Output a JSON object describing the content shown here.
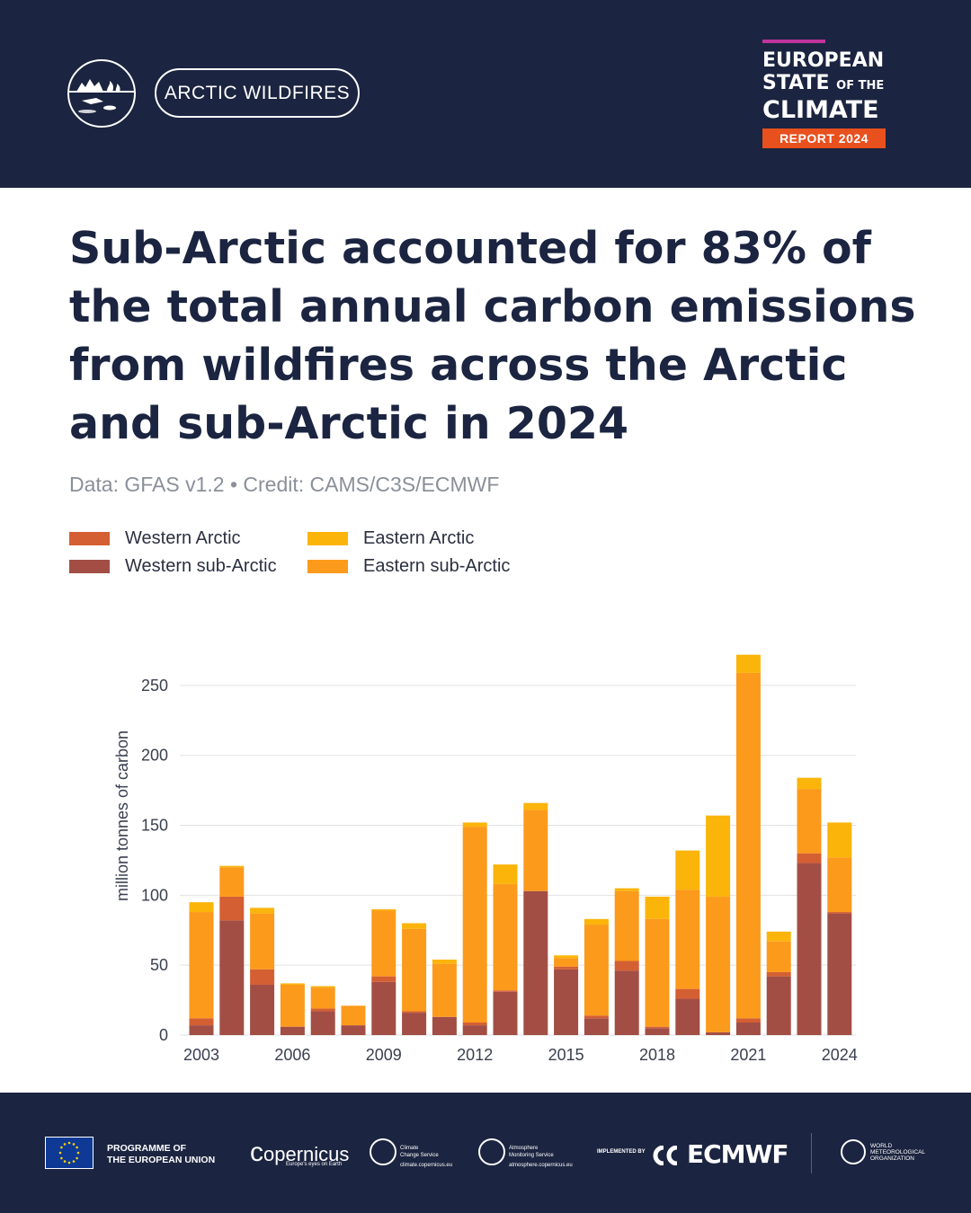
{
  "header": {
    "badge_label": "ARCTIC WILDFIRES",
    "report_logo": {
      "line1": "EUROPEAN",
      "line2_big": "STATE",
      "line2_small": "OF THE",
      "line3": "CLIMATE",
      "badge": "REPORT 2024"
    }
  },
  "title": "Sub-Arctic accounted for 83% of the total annual carbon emissions from wildfires across the Arctic and sub-Arctic in 2024",
  "credit": "Data: GFAS v1.2 • Credit: CAMS/C3S/ECMWF",
  "colors": {
    "background_header": "#1b2440",
    "western_arctic": "#d45f33",
    "western_subarctic": "#a24e45",
    "eastern_arctic": "#fbb40a",
    "eastern_subarctic": "#fc9a1c",
    "report_badge": "#e8501e"
  },
  "chart_data": {
    "type": "bar",
    "stacked": true,
    "title": "",
    "xlabel": "",
    "ylabel": "million tonnes of carbon",
    "ylim": [
      0,
      275
    ],
    "yticks": [
      0,
      50,
      100,
      150,
      200,
      250
    ],
    "xtick_labels": [
      "2003",
      "2006",
      "2009",
      "2012",
      "2015",
      "2018",
      "2021",
      "2024"
    ],
    "grid": "horizontal",
    "legend_position": "top-left",
    "categories": [
      2003,
      2004,
      2005,
      2006,
      2007,
      2008,
      2009,
      2010,
      2011,
      2012,
      2013,
      2014,
      2015,
      2016,
      2017,
      2018,
      2019,
      2020,
      2021,
      2022,
      2023,
      2024
    ],
    "series": [
      {
        "name": "Western sub-Arctic",
        "color": "#a24e45",
        "values": [
          7,
          82,
          36,
          6,
          17,
          7,
          38,
          16,
          13,
          7,
          31,
          103,
          47,
          12,
          46,
          5,
          26,
          2,
          9,
          42,
          123,
          87
        ]
      },
      {
        "name": "Western Arctic",
        "color": "#d45f33",
        "values": [
          5,
          17,
          11,
          0,
          2,
          0,
          4,
          1,
          0,
          2,
          1,
          0,
          2,
          2,
          7,
          1,
          7,
          0,
          3,
          3,
          7,
          1
        ]
      },
      {
        "name": "Eastern sub-Arctic",
        "color": "#fc9a1c",
        "values": [
          76,
          21,
          40,
          30,
          15,
          14,
          47,
          59,
          38,
          140,
          76,
          58,
          6,
          65,
          50,
          77,
          71,
          97,
          247,
          22,
          46,
          39
        ]
      },
      {
        "name": "Eastern Arctic",
        "color": "#fbb40a",
        "values": [
          7,
          1,
          4,
          1,
          1,
          0,
          1,
          4,
          3,
          3,
          14,
          5,
          2,
          4,
          2,
          16,
          28,
          58,
          13,
          7,
          8,
          25
        ]
      }
    ]
  },
  "footer": {
    "eu_text_line1": "PROGRAMME OF",
    "eu_text_line2": "THE EUROPEAN UNION",
    "copernicus": "opernicus",
    "copernicus_c": "c",
    "copernicus_sub": "Europe's eyes on Earth",
    "c3s_line1": "Climate",
    "c3s_line2": "Change Service",
    "c3s_url": "climate.copernicus.eu",
    "cams_line1": "Atmosphere",
    "cams_line2": "Monitoring Service",
    "cams_url": "atmosphere.copernicus.eu",
    "implemented_by": "IMPLEMENTED BY",
    "ecmwf": "ECMWF",
    "wmo_line1": "WORLD",
    "wmo_line2": "METEOROLOGICAL",
    "wmo_line3": "ORGANIZATION"
  }
}
